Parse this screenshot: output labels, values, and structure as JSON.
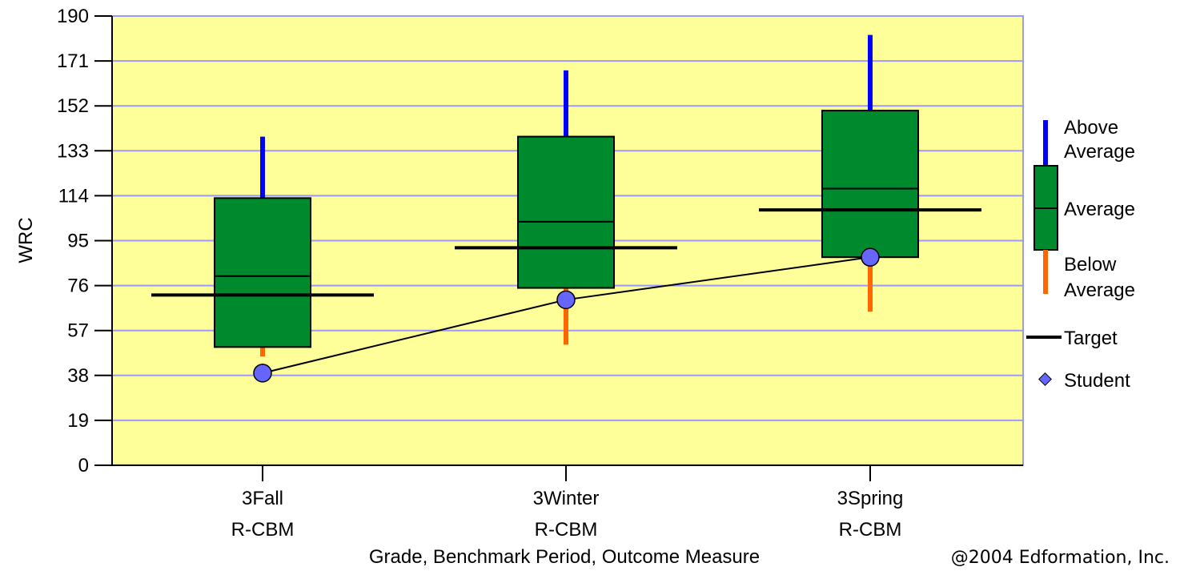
{
  "chart_data": {
    "type": "box",
    "ylabel": "WRC",
    "xlabel": "Grade, Benchmark Period, Outcome Measure",
    "ylim": [
      0,
      190
    ],
    "yticks": [
      0,
      19,
      38,
      57,
      76,
      95,
      114,
      133,
      152,
      171,
      190
    ],
    "grid": true,
    "legend_placement": "right",
    "categories": [
      {
        "line1": "3Fall",
        "line2": "R-CBM",
        "whisker_low": 46,
        "box_low": 50,
        "median": 80,
        "box_high": 113,
        "whisker_high": 139,
        "target": 72,
        "student": 39
      },
      {
        "line1": "3Winter",
        "line2": "R-CBM",
        "whisker_low": 51,
        "box_low": 75,
        "median": 103,
        "box_high": 139,
        "whisker_high": 167,
        "target": 92,
        "student": 70
      },
      {
        "line1": "3Spring",
        "line2": "R-CBM",
        "whisker_low": 65,
        "box_low": 88,
        "median": 117,
        "box_high": 150,
        "whisker_high": 182,
        "target": 108,
        "student": 88
      }
    ],
    "legend": {
      "above": [
        "Above",
        "Average"
      ],
      "average": "Average",
      "below": [
        "Below",
        "Average"
      ],
      "target": "Target",
      "student": "Student"
    },
    "colors": {
      "plot_bg": "#ffff99",
      "grid": "#9999ff",
      "box": "#008a2e",
      "above": "#0000ff",
      "below": "#ff6600",
      "target": "#000000",
      "student": "#6666ff"
    }
  },
  "footer": {
    "copyright": "@2004 Edformation, Inc."
  }
}
